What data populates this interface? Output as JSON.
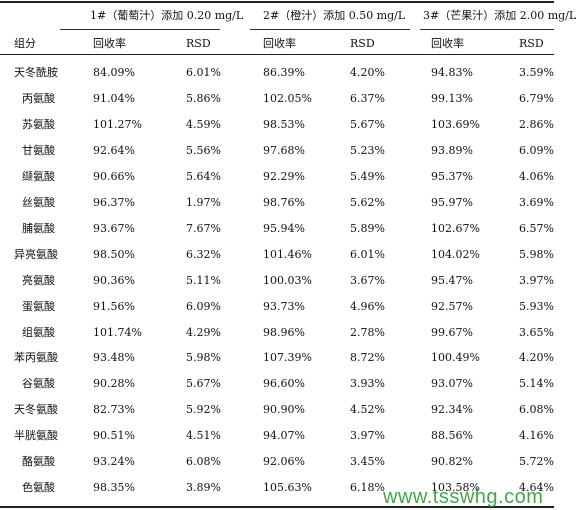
{
  "header": {
    "groups": [
      "1#（葡萄汁）添加 0.20 mg/L",
      "2#（橙汁）添加 0.50 mg/L",
      "3#（芒果汁）添加 2.00 mg/L"
    ],
    "component_label": "组分",
    "recovery_label": "回收率",
    "rsd_label": "RSD"
  },
  "rows": [
    {
      "name": "天冬酰胺",
      "values": [
        "84.09%",
        "6.01%",
        "86.39%",
        "4.20%",
        "94.83%",
        "3.59%"
      ]
    },
    {
      "name": "丙氨酸",
      "values": [
        "91.04%",
        "5.86%",
        "102.05%",
        "6.37%",
        "99.13%",
        "6.79%"
      ]
    },
    {
      "name": "苏氨酸",
      "values": [
        "101.27%",
        "4.59%",
        "98.53%",
        "5.67%",
        "103.69%",
        "2.86%"
      ]
    },
    {
      "name": "甘氨酸",
      "values": [
        "92.64%",
        "5.56%",
        "97.68%",
        "5.23%",
        "93.89%",
        "6.09%"
      ]
    },
    {
      "name": "缬氨酸",
      "values": [
        "90.66%",
        "5.64%",
        "92.29%",
        "5.49%",
        "95.37%",
        "4.06%"
      ]
    },
    {
      "name": "丝氨酸",
      "values": [
        "96.37%",
        "1.97%",
        "98.76%",
        "5.62%",
        "95.97%",
        "3.69%"
      ]
    },
    {
      "name": "脯氨酸",
      "values": [
        "93.67%",
        "7.67%",
        "95.94%",
        "5.89%",
        "102.67%",
        "6.57%"
      ]
    },
    {
      "name": "异亮氨酸",
      "values": [
        "98.50%",
        "6.32%",
        "101.46%",
        "6.01%",
        "104.02%",
        "5.98%"
      ]
    },
    {
      "name": "亮氨酸",
      "values": [
        "90.36%",
        "5.11%",
        "100.03%",
        "3.67%",
        "95.47%",
        "3.97%"
      ]
    },
    {
      "name": "蛋氨酸",
      "values": [
        "91.56%",
        "6.09%",
        "93.73%",
        "4.96%",
        "92.57%",
        "5.93%"
      ]
    },
    {
      "name": "组氨酸",
      "values": [
        "101.74%",
        "4.29%",
        "98.96%",
        "2.78%",
        "99.67%",
        "3.65%"
      ]
    },
    {
      "name": "苯丙氨酸",
      "values": [
        "93.48%",
        "5.98%",
        "107.39%",
        "8.72%",
        "100.49%",
        "4.20%"
      ]
    },
    {
      "name": "谷氨酸",
      "values": [
        "90.28%",
        "5.67%",
        "96.60%",
        "3.93%",
        "93.07%",
        "5.14%"
      ]
    },
    {
      "name": "天冬氨酸",
      "values": [
        "82.73%",
        "5.92%",
        "90.90%",
        "4.52%",
        "92.34%",
        "6.08%"
      ]
    },
    {
      "name": "半胱氨酸",
      "values": [
        "90.51%",
        "4.51%",
        "94.07%",
        "3.97%",
        "88.56%",
        "4.16%"
      ]
    },
    {
      "name": "酪氨酸",
      "values": [
        "93.24%",
        "6.08%",
        "92.06%",
        "3.45%",
        "90.82%",
        "5.72%"
      ]
    },
    {
      "name": "色氨酸",
      "values": [
        "98.35%",
        "3.89%",
        "105.63%",
        "6.18%",
        "103.58%",
        "4.64%"
      ]
    }
  ],
  "watermark": "www.tsswhg.com"
}
